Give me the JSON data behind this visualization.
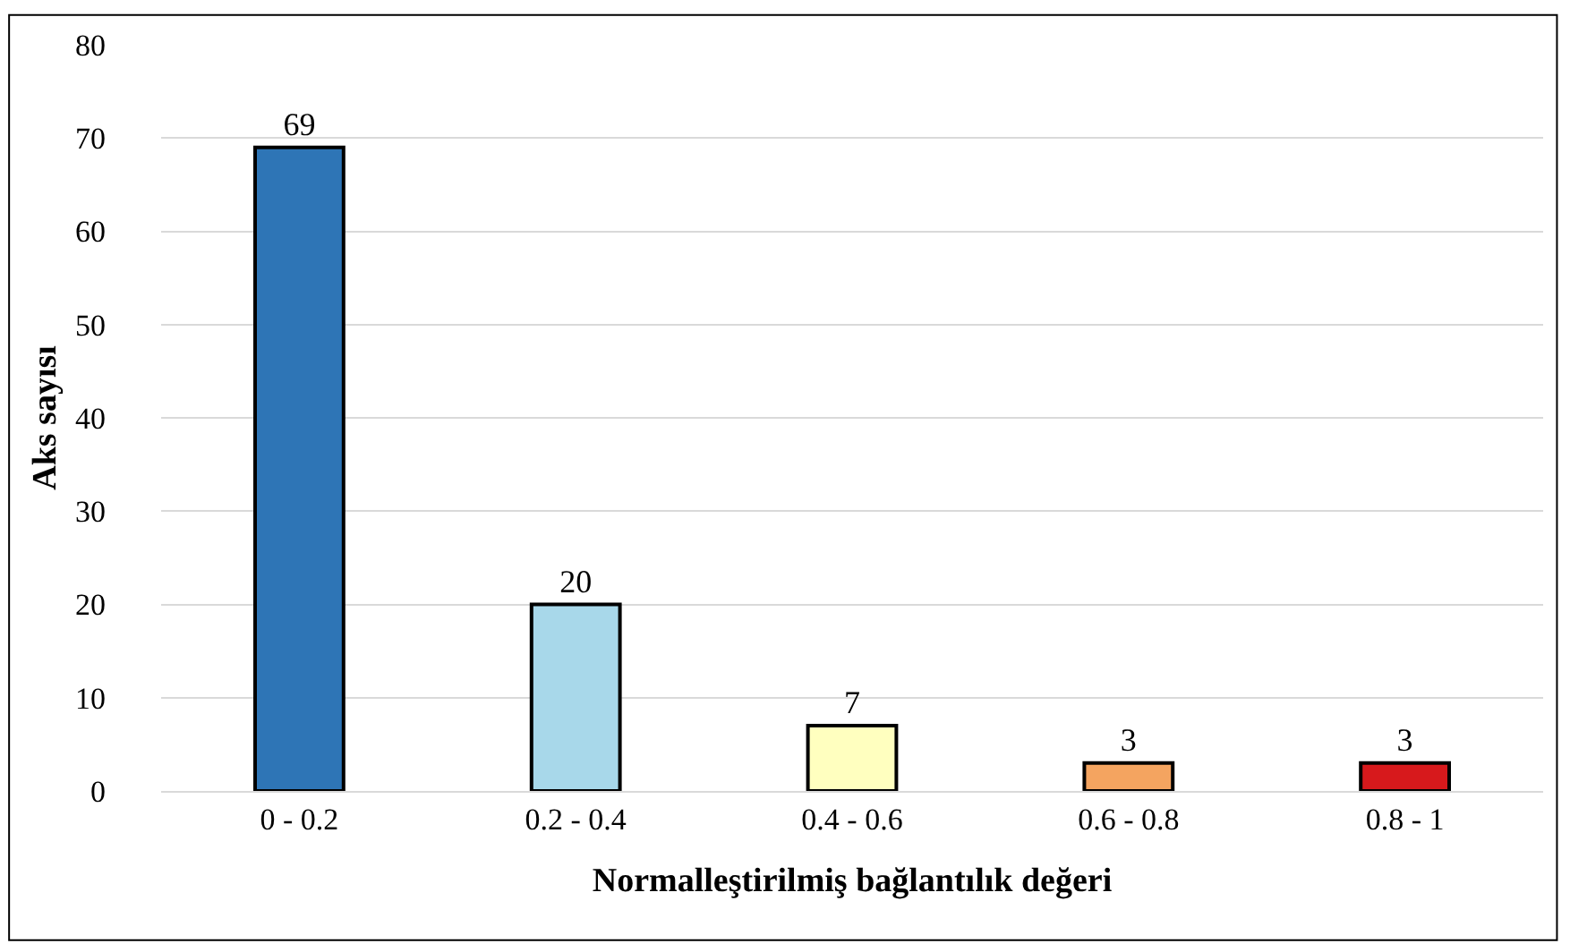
{
  "chart_data": {
    "type": "bar",
    "xlabel": "Normalleştirilmiş bağlantılık değeri",
    "ylabel": "Aks sayısı",
    "categories": [
      "0 - 0.2",
      "0.2 - 0.4",
      "0.4 - 0.6",
      "0.6 - 0.8",
      "0.8 - 1"
    ],
    "values": [
      69,
      20,
      7,
      3,
      3
    ],
    "colors": [
      "#2e75b6",
      "#a8d8ea",
      "#ffffbf",
      "#f4a460",
      "#d7191c"
    ],
    "ylim": [
      0,
      80
    ],
    "yticks": [
      0,
      10,
      20,
      30,
      40,
      50,
      60,
      70,
      80
    ],
    "grid": "y",
    "data_labels": true
  }
}
